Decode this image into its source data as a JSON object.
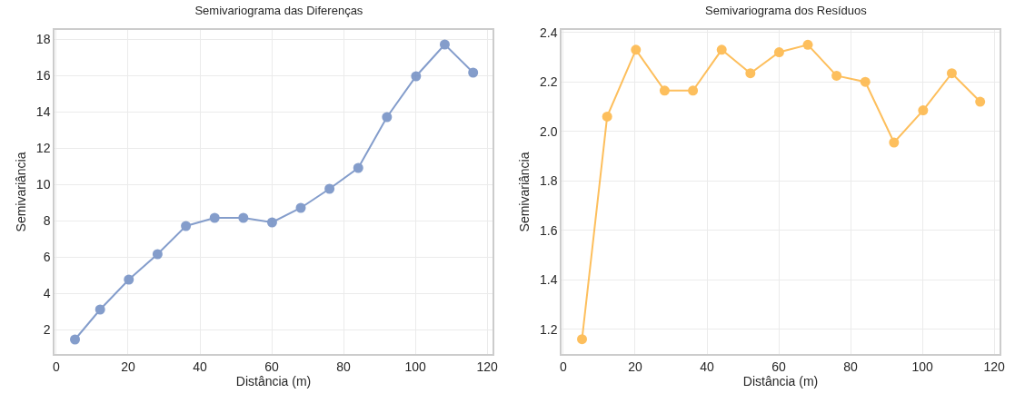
{
  "chart_data": [
    {
      "type": "line",
      "title": "Semivariograma das Diferenças",
      "xlabel": "Distância (m)",
      "ylabel": "Semivariância",
      "x": [
        5.2,
        12.2,
        20.2,
        28.2,
        36.1,
        44.1,
        52.1,
        60.1,
        68.1,
        76.1,
        84.1,
        92.1,
        100.2,
        108.2,
        116.1
      ],
      "series": [
        {
          "color": "#6f8cc3",
          "values": [
            1.45,
            3.1,
            4.75,
            6.15,
            7.7,
            8.15,
            8.15,
            7.9,
            8.7,
            9.75,
            10.9,
            13.7,
            15.95,
            17.7,
            16.15
          ]
        }
      ],
      "xlim": [
        -0.5,
        121.5
      ],
      "xticks": [
        0,
        20,
        40,
        60,
        80,
        100,
        120
      ],
      "ylim": [
        0.65,
        18.5
      ],
      "yticks": [
        2,
        4,
        6,
        8,
        10,
        12,
        14,
        16,
        18
      ],
      "grid": true,
      "marker": "circle",
      "line_style": "solid"
    },
    {
      "type": "line",
      "title": "Semivariograma dos Resíduos",
      "xlabel": "Distância (m)",
      "ylabel": "Semivariância",
      "x": [
        5.2,
        12.2,
        20.2,
        28.2,
        36.1,
        44.1,
        52.1,
        60.1,
        68.1,
        76.1,
        84.1,
        92.1,
        100.2,
        108.2,
        116.1
      ],
      "series": [
        {
          "color": "#fdb441",
          "values": [
            1.16,
            2.06,
            2.33,
            2.165,
            2.165,
            2.33,
            2.235,
            2.32,
            2.35,
            2.225,
            2.2,
            1.955,
            2.085,
            2.235,
            2.12
          ]
        }
      ],
      "xlim": [
        -0.5,
        121.5
      ],
      "xticks": [
        0,
        20,
        40,
        60,
        80,
        100,
        120
      ],
      "ylim": [
        1.1,
        2.41
      ],
      "yticks": [
        {
          "value": 1.2,
          "label": "1.2"
        },
        {
          "value": 1.4,
          "label": "1.4"
        },
        {
          "value": 1.6,
          "label": "1.6"
        },
        {
          "value": 1.8,
          "label": "1.8"
        },
        {
          "value": 2.0,
          "label": "2.0"
        },
        {
          "value": 2.2,
          "label": "2.2"
        },
        {
          "value": 2.4,
          "label": "2.4"
        }
      ],
      "grid": true,
      "marker": "circle",
      "line_style": "solid"
    }
  ]
}
